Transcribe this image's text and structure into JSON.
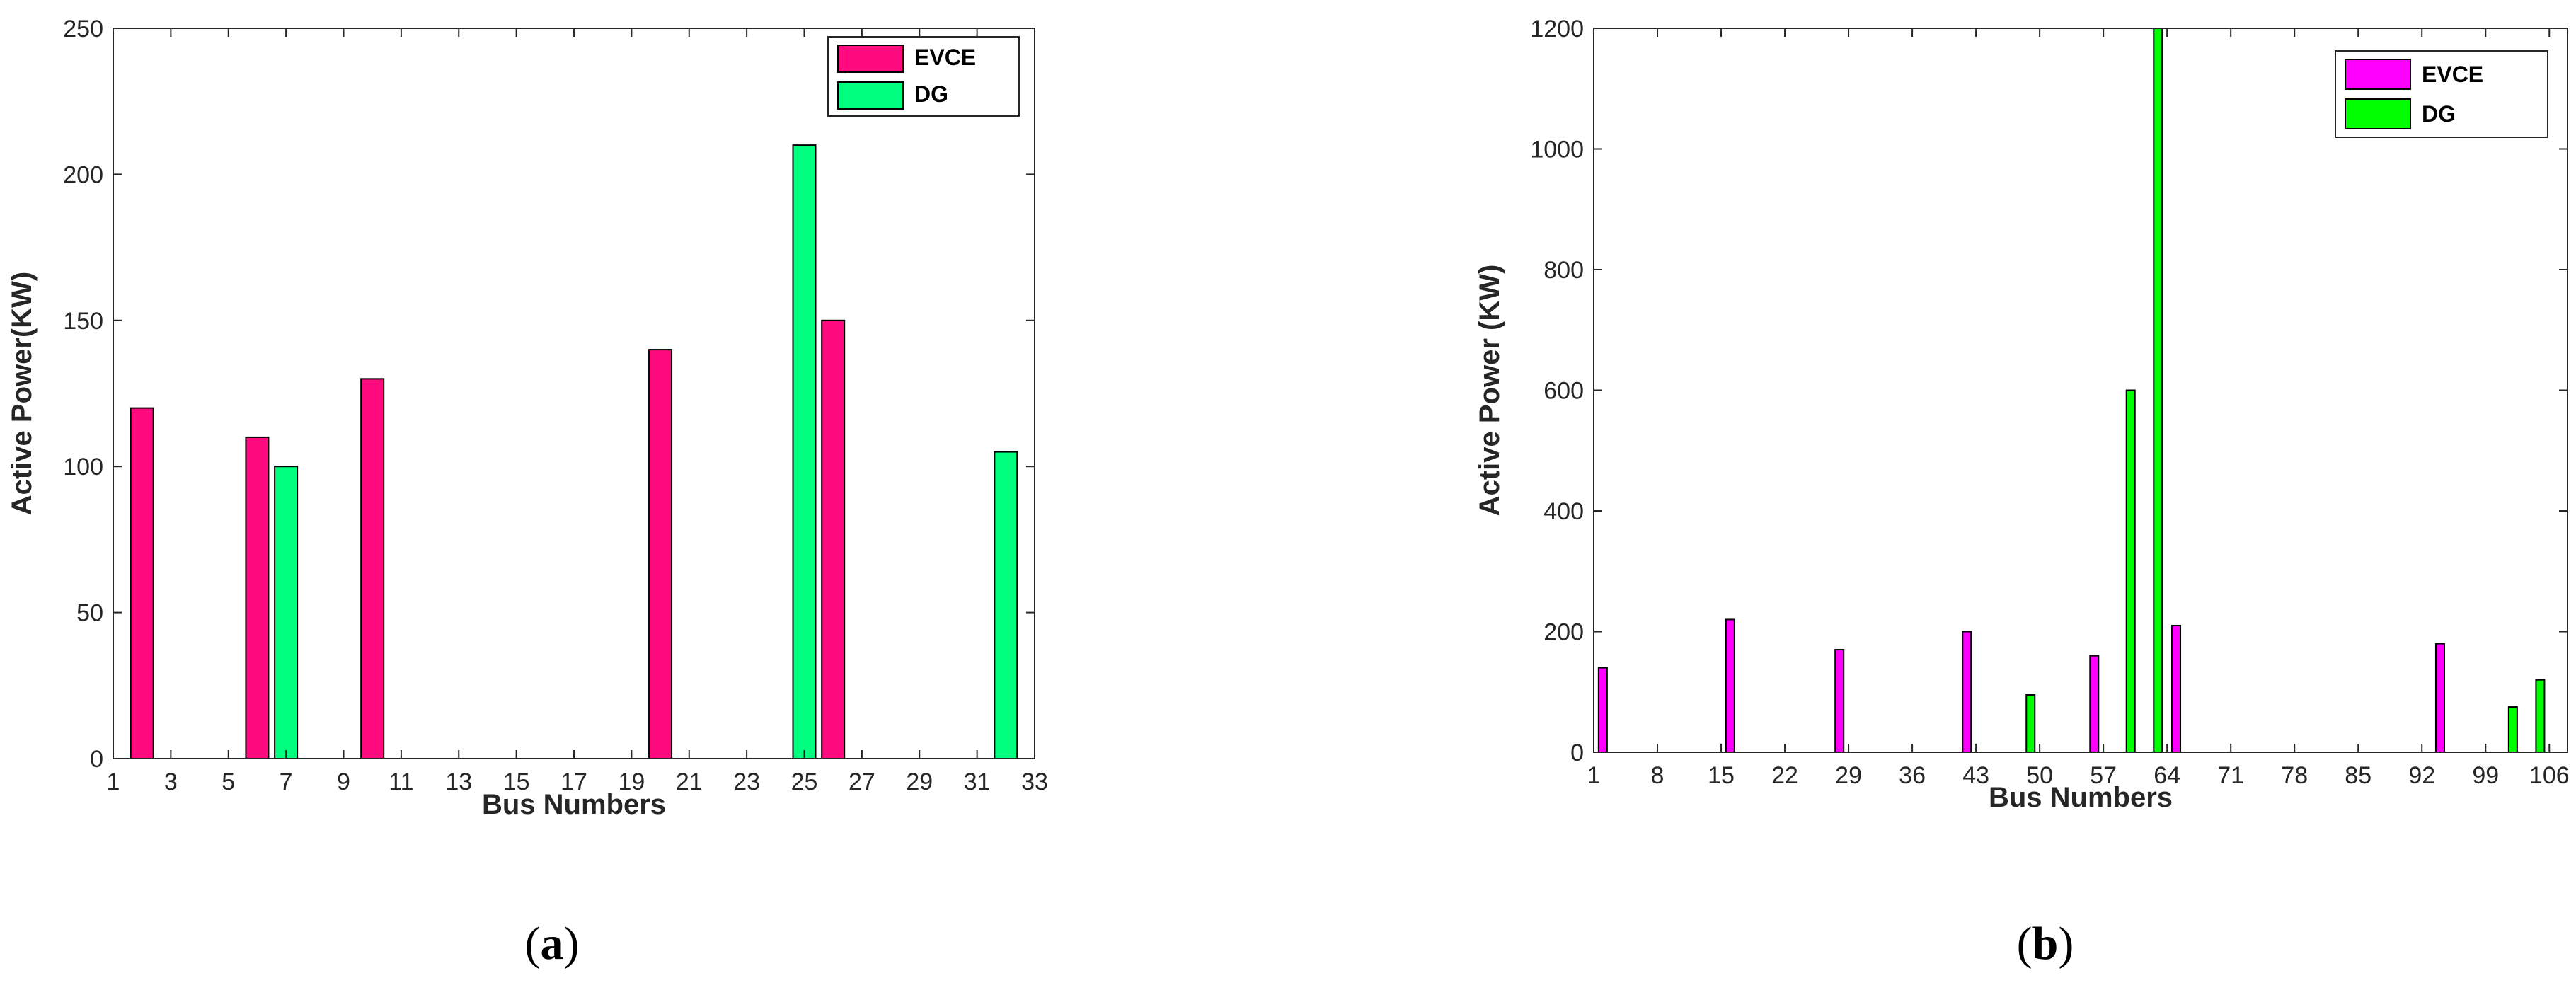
{
  "chart_data": [
    {
      "type": "bar",
      "xlabel": "Bus Numbers",
      "ylabel": "Active Power(KW)",
      "xlim": [
        1,
        33
      ],
      "ylim": [
        0,
        250
      ],
      "xticks": [
        1,
        3,
        5,
        7,
        9,
        11,
        13,
        15,
        17,
        19,
        21,
        23,
        25,
        27,
        29,
        31,
        33
      ],
      "yticks": [
        0,
        50,
        100,
        150,
        200,
        250
      ],
      "grid": false,
      "legend": "top-right",
      "series": [
        {
          "name": "EVCE",
          "color": "#ff0a7f",
          "x": [
            2,
            6,
            10,
            20,
            26
          ],
          "values": [
            120,
            110,
            130,
            140,
            150
          ]
        },
        {
          "name": "DG",
          "color": "#00ff7f",
          "x": [
            7,
            25,
            32
          ],
          "values": [
            100,
            210,
            105
          ]
        }
      ],
      "caption_prefix": "(",
      "caption_label": "a",
      "caption_suffix": ")"
    },
    {
      "type": "bar",
      "xlabel": "Bus Numbers",
      "ylabel": "Active Power (KW)",
      "xlim": [
        1,
        108
      ],
      "ylim": [
        0,
        1200
      ],
      "xticks": [
        1,
        8,
        15,
        22,
        29,
        36,
        43,
        50,
        57,
        64,
        71,
        78,
        85,
        92,
        99,
        106
      ],
      "yticks": [
        0,
        200,
        400,
        600,
        800,
        1000,
        1200
      ],
      "grid": false,
      "legend": "top-right",
      "series": [
        {
          "name": "EVCE",
          "color": "#ff00ff",
          "x": [
            2,
            16,
            28,
            42,
            56,
            65,
            94
          ],
          "values": [
            140,
            220,
            170,
            200,
            160,
            210,
            180
          ]
        },
        {
          "name": "DG",
          "color": "#00ff00",
          "x": [
            49,
            60,
            63,
            102,
            105
          ],
          "values": [
            95,
            600,
            1200,
            75,
            120
          ]
        }
      ],
      "caption_prefix": "(",
      "caption_label": "b",
      "caption_suffix": ")"
    }
  ]
}
